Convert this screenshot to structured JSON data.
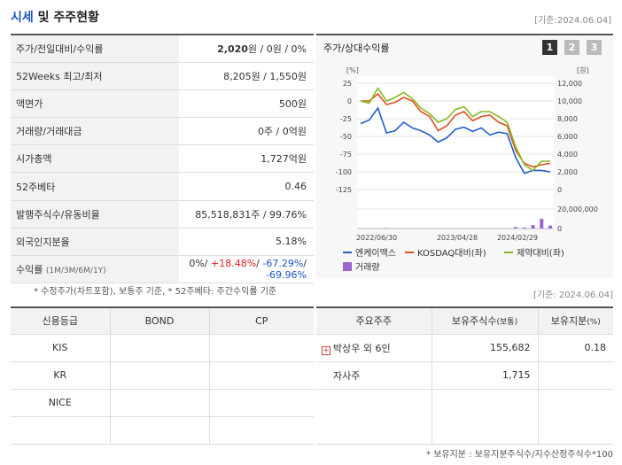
{
  "header": {
    "title_a": "시세",
    "title_b": "및 주주현황",
    "date": "[기준:2024.06.04]"
  },
  "info": {
    "price_label": "주가/전일대비/수익률",
    "price_value": "2,020",
    "price_suffix": "원 / 0원 / 0%",
    "wk52_label": "52Weeks 최고/최저",
    "wk52_value": "8,205원 / 1,550원",
    "par_label": "액면가",
    "par_value": "500원",
    "vol_label": "거래량/거래대금",
    "vol_value": "0주 / 0억원",
    "mcap_label": "시가총액",
    "mcap_value": "1,727억원",
    "beta_label": "52주베타",
    "beta_value": "0.46",
    "shares_label": "발행주식수/유동비율",
    "shares_value": "85,518,831주 / 99.76%",
    "foreign_label": "외국인지분율",
    "foreign_value": "5.18%",
    "return_label": "수익률",
    "return_period": "(1M/3M/6M/1Y)",
    "ret_1m": "0%",
    "ret_3m": "+18.48%",
    "ret_6m": "-67.29%",
    "ret_1y": "-69.96%",
    "sep": "/ "
  },
  "note1": "* 수정주가(차트포함), 보통주 기준, * 52주베타: 주간수익률 기준",
  "chart_panel": {
    "title": "주가/상대수익률",
    "pages": [
      "1",
      "2",
      "3"
    ]
  },
  "chart_data": {
    "type": "line",
    "x_tick_labels": [
      "2022/06/30",
      "2023/04/28",
      "2024/02/29"
    ],
    "left_axis": {
      "unit": "[%]",
      "ticks": [
        "25",
        "0",
        "-25",
        "-50",
        "-75",
        "-100",
        "-125"
      ],
      "range": [
        -125,
        25
      ]
    },
    "right_axis": {
      "unit": "[원]",
      "ticks": [
        "12,000",
        "10,000",
        "8,000",
        "6,000",
        "4,000",
        "2,000",
        "0"
      ],
      "range": [
        0,
        12000
      ]
    },
    "volume_axis": {
      "ticks": [
        "20,000,000",
        "0"
      ],
      "range": [
        0,
        20000000
      ]
    },
    "series": [
      {
        "name": "엔케이맥스",
        "color": "#2060c8",
        "values": [
          -32,
          -27,
          -10,
          -45,
          -42,
          -30,
          -38,
          -42,
          -48,
          -58,
          -52,
          -40,
          -37,
          -43,
          -38,
          -48,
          -44,
          -46,
          -80,
          -102,
          -98,
          -98,
          -100
        ]
      },
      {
        "name": "KOSDAQ대비(좌)",
        "color": "#e05020",
        "values": [
          0,
          0,
          10,
          -5,
          -2,
          5,
          0,
          -15,
          -22,
          -42,
          -35,
          -20,
          -15,
          -28,
          -22,
          -20,
          -30,
          -35,
          -70,
          -88,
          -93,
          -90,
          -88
        ]
      },
      {
        "name": "제약대비(좌)",
        "color": "#88b820",
        "values": [
          0,
          -3,
          18,
          0,
          5,
          12,
          3,
          -10,
          -18,
          -30,
          -25,
          -12,
          -8,
          -22,
          -15,
          -15,
          -22,
          -30,
          -65,
          -90,
          -98,
          -85,
          -85
        ]
      }
    ],
    "volume": {
      "name": "거래량",
      "color": "#9966cc",
      "bars": [
        {
          "i": 3,
          "v": 400000
        },
        {
          "i": 18,
          "v": 1500000
        },
        {
          "i": 19,
          "v": 1000000
        },
        {
          "i": 20,
          "v": 3500000
        },
        {
          "i": 21,
          "v": 10000000
        },
        {
          "i": 22,
          "v": 3000000
        }
      ]
    }
  },
  "note2_date": "[기준: 2024.06.04]",
  "credit": {
    "headers": [
      "신용등급",
      "BOND",
      "CP"
    ],
    "rows": [
      [
        "KIS",
        "",
        ""
      ],
      [
        "KR",
        "",
        ""
      ],
      [
        "NICE",
        "",
        ""
      ],
      [
        "",
        "",
        ""
      ]
    ]
  },
  "holders": {
    "h_name": "주요주주",
    "h_shares": "보유주식수",
    "h_shares_unit": "(보통)",
    "h_pct": "보유지분",
    "h_pct_unit": "(%)",
    "rows": [
      {
        "name": "박상우 외 6인",
        "shares": "155,682",
        "pct": "0.18",
        "expandable": true
      },
      {
        "name": "자사주",
        "shares": "1,715",
        "pct": "",
        "expandable": false
      },
      {
        "name": "",
        "shares": "",
        "pct": "",
        "expandable": false
      }
    ]
  },
  "note3": "* 보유지분 : 보유지분주식수/지수산정주식수*100"
}
